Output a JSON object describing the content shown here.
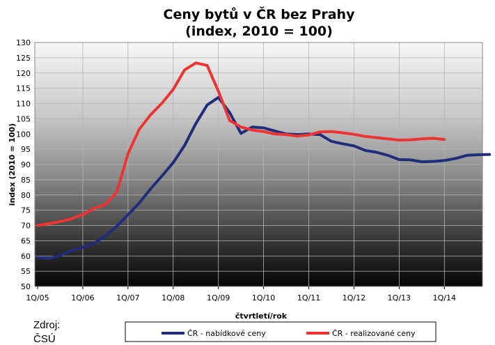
{
  "chart_data": {
    "type": "line",
    "title": [
      "Ceny bytů v ČR bez Prahy",
      "(index, 2010 = 100)"
    ],
    "xlabel": "čtvrtletí/rok",
    "ylabel": "index (2010 = 100)",
    "ylim": [
      50,
      130
    ],
    "ytick_step": 5,
    "grid": true,
    "x_tick_labels": [
      "1Q/05",
      "1Q/06",
      "1Q/07",
      "1Q/08",
      "1Q/09",
      "1Q/10",
      "1Q/11",
      "1Q/12",
      "1Q/13",
      "1Q/14"
    ],
    "x_start": "1Q/05",
    "legend_placement": "bottom",
    "series": [
      {
        "name": "ČR - nabídkové ceny",
        "color": "#1f2d7a",
        "values": [
          59.5,
          59.2,
          60.2,
          61.8,
          62.8,
          64.2,
          66.6,
          69.7,
          73.5,
          77.4,
          82,
          86.2,
          90.6,
          96.2,
          103.4,
          109.5,
          112,
          107,
          100.2,
          102.3,
          102,
          101,
          100,
          99.8,
          100,
          99.8,
          97.6,
          96.8,
          96.1,
          94.6,
          94,
          93,
          91.6,
          91.5,
          90.9,
          91,
          91.3,
          92,
          93,
          93.2,
          93.3
        ]
      },
      {
        "name": "ČR - realizované ceny",
        "color": "#ee3333",
        "values": [
          70,
          70.6,
          71.3,
          72.2,
          73.6,
          75.6,
          76.9,
          80.8,
          93.5,
          101.6,
          106.3,
          110.1,
          114.6,
          121,
          123.3,
          122.5,
          114,
          104.4,
          102.3,
          101.3,
          100.8,
          100,
          99.8,
          99.3,
          99.7,
          100.7,
          100.8,
          100.4,
          99.9,
          99.2,
          98.8,
          98.4,
          98,
          98.1,
          98.4,
          98.6,
          98.2
        ]
      }
    ]
  },
  "source": {
    "label": "Zdroj:",
    "value": "ČSÚ"
  }
}
